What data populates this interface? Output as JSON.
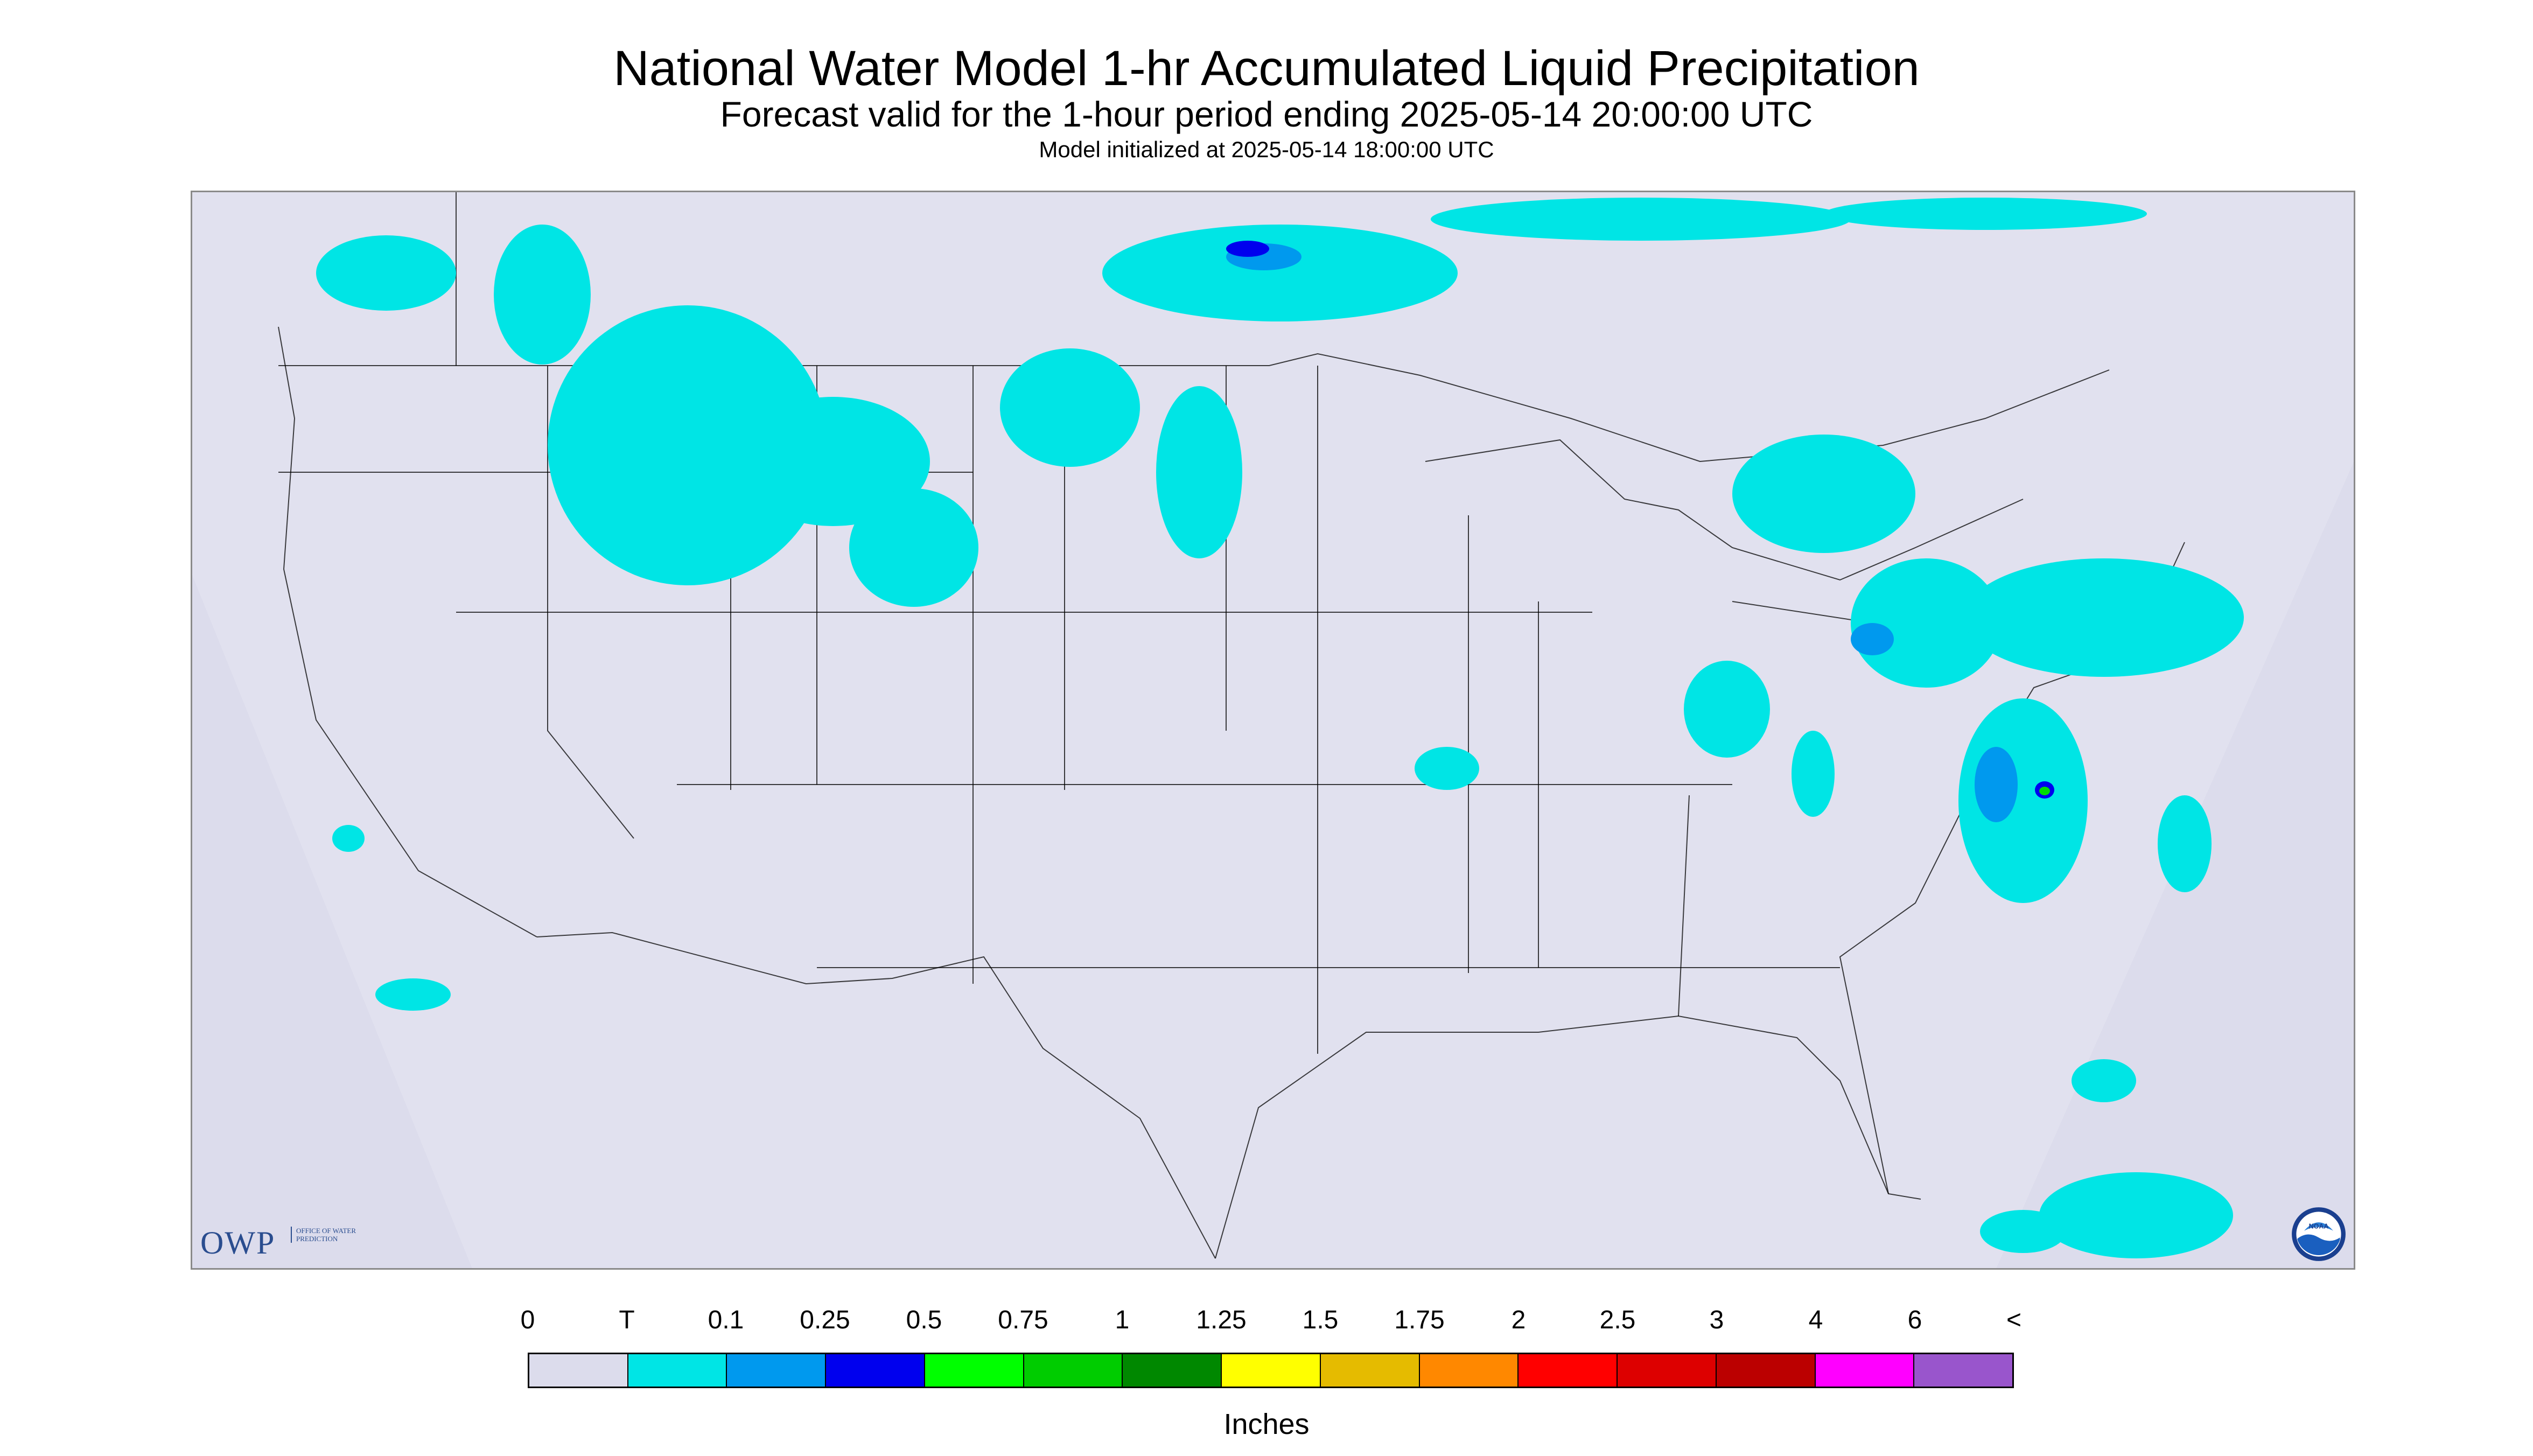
{
  "header": {
    "title": "National Water Model 1-hr Accumulated Liquid Precipitation",
    "subtitle": "Forecast valid for the 1-hour period ending 2025-05-14 20:00:00 UTC",
    "init": "Model initialized at 2025-05-14 18:00:00 UTC"
  },
  "map": {
    "outside_domain_color": "#dcdcec",
    "background_color": "#ffffff",
    "boundary_color": "#000000",
    "precip_trace_color": "#00e5e5",
    "precip_light_color": "#0099ee",
    "precip_moderate_color": "#0000ee",
    "precip_heavy_color": "#00dd00",
    "precip_yellow_color": "#ffff00"
  },
  "logos": {
    "owp_text": "OWP",
    "owp_sub": "Office of Water Prediction",
    "noaa_text": "NOAA"
  },
  "legend": {
    "labels": [
      "0",
      "T",
      "0.1",
      "0.25",
      "0.5",
      "0.75",
      "1",
      "1.25",
      "1.5",
      "1.75",
      "2",
      "2.5",
      "3",
      "4",
      "6",
      "<"
    ],
    "colors": [
      "#dcdcec",
      "#00e5e5",
      "#0099ee",
      "#0000ee",
      "#00ff00",
      "#00cc00",
      "#008800",
      "#ffff00",
      "#e5bb00",
      "#ff8800",
      "#ff0000",
      "#dd0000",
      "#bb0000",
      "#ff00ff",
      "#9955cc"
    ],
    "units": "Inches"
  }
}
